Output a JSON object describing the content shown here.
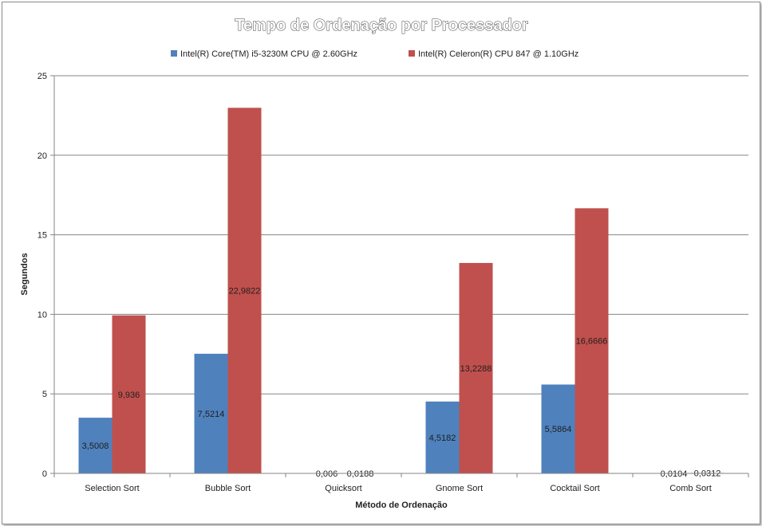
{
  "chart_data": {
    "type": "bar",
    "title": "Tempo de Ordenação por Processador",
    "xlabel": "Método de Ordenação",
    "ylabel": "Segundos",
    "categories": [
      "Selection Sort",
      "Bubble Sort",
      "Quicksort",
      "Gnome Sort",
      "Cocktail Sort",
      "Comb Sort"
    ],
    "series": [
      {
        "name": "Intel(R) Core(TM) i5-3230M CPU @ 2.60GHz",
        "color": "#4F81BD",
        "values": [
          3.5008,
          7.5214,
          0.006,
          4.5182,
          5.5864,
          0.0104
        ],
        "labels": [
          "3,5008",
          "7,5214",
          "0,006",
          "4,5182",
          "5,5864",
          "0,0104"
        ]
      },
      {
        "name": "Intel(R) Celeron(R) CPU 847 @ 1.10GHz",
        "color": "#C0504D",
        "values": [
          9.936,
          22.9822,
          0.0188,
          13.2288,
          16.6666,
          0.0312
        ],
        "labels": [
          "9,936",
          "22,9822",
          "0,0188",
          "13,2288",
          "16,6666",
          "0,0312"
        ]
      }
    ],
    "ylim": [
      0,
      25
    ],
    "yticks": [
      0,
      5,
      10,
      15,
      20,
      25
    ],
    "grid": true,
    "legend": "top"
  }
}
